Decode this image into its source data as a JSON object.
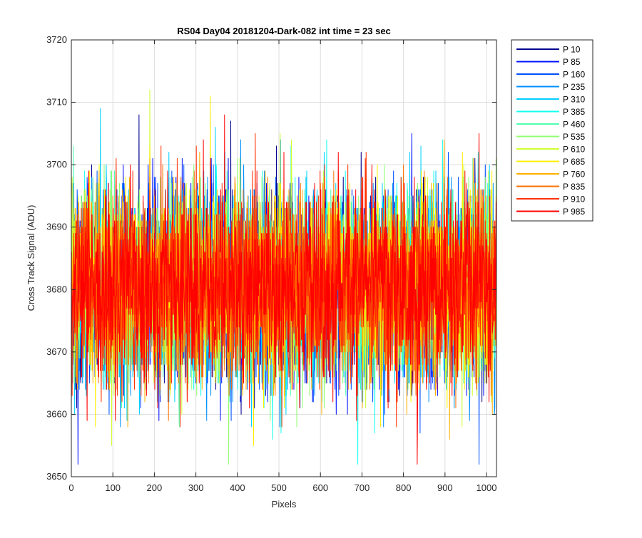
{
  "chart_data": {
    "type": "line",
    "title": "RS04 Day04 20181204-Dark-082 int time = 23 sec",
    "xlabel": "Pixels",
    "ylabel": "Cross Track Signal (ADU)",
    "xlim": [
      0,
      1024
    ],
    "ylim": [
      3650,
      3720
    ],
    "xticks": [
      0,
      100,
      200,
      300,
      400,
      500,
      600,
      700,
      800,
      900,
      1000
    ],
    "yticks": [
      3650,
      3660,
      3670,
      3680,
      3690,
      3700,
      3710,
      3720
    ],
    "grid": true,
    "legend_position": "outside-top-right",
    "noise_model": {
      "mean": 3680.5,
      "approx_std": 7.5,
      "min": 3652,
      "max": 3716,
      "n_points": 1024
    },
    "series": [
      {
        "name": "P 10",
        "color": "#00008f"
      },
      {
        "name": "P 85",
        "color": "#0010ff"
      },
      {
        "name": "P 160",
        "color": "#0050ff"
      },
      {
        "name": "P 235",
        "color": "#0090ff"
      },
      {
        "name": "P 310",
        "color": "#00cfff"
      },
      {
        "name": "P 385",
        "color": "#10ffef"
      },
      {
        "name": "P 460",
        "color": "#50ffaf"
      },
      {
        "name": "P 535",
        "color": "#8fff70"
      },
      {
        "name": "P 610",
        "color": "#cfff30"
      },
      {
        "name": "P 685",
        "color": "#ffef00"
      },
      {
        "name": "P 760",
        "color": "#ffaf00"
      },
      {
        "name": "P 835",
        "color": "#ff7000"
      },
      {
        "name": "P 910",
        "color": "#ff3000"
      },
      {
        "name": "P 985",
        "color": "#ff0000"
      }
    ]
  }
}
